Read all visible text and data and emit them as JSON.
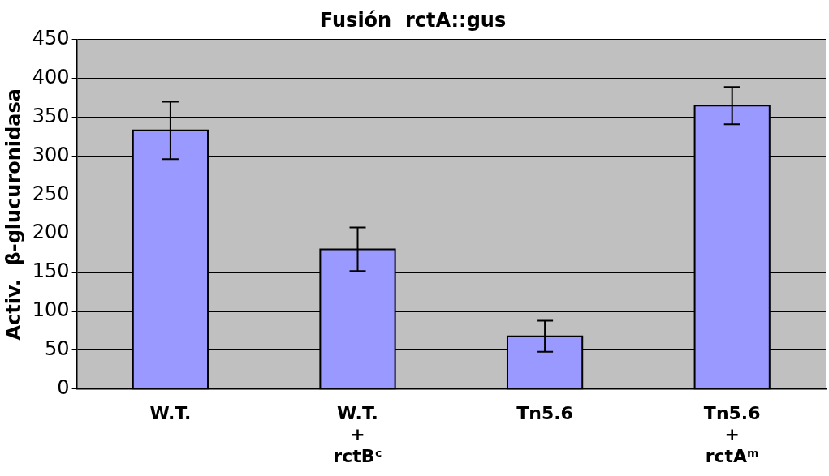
{
  "chart_data": {
    "type": "bar",
    "title": "Fusión  rctA::gus",
    "ylabel": "Activ.  β-glucuronidasa",
    "categories": [
      "W.T.",
      "W.T.\n+\nrctBᶜ",
      "Tn5.6",
      "Tn5.6\n+\nrctAᵐ"
    ],
    "values": [
      333,
      180,
      68,
      365
    ],
    "errors": [
      37,
      28,
      20,
      24
    ],
    "color": "#9999ff",
    "ylim": [
      0,
      450
    ],
    "yticks": [
      0,
      50,
      100,
      150,
      200,
      250,
      300,
      350,
      400,
      450
    ],
    "grid": "y",
    "legend": false
  }
}
